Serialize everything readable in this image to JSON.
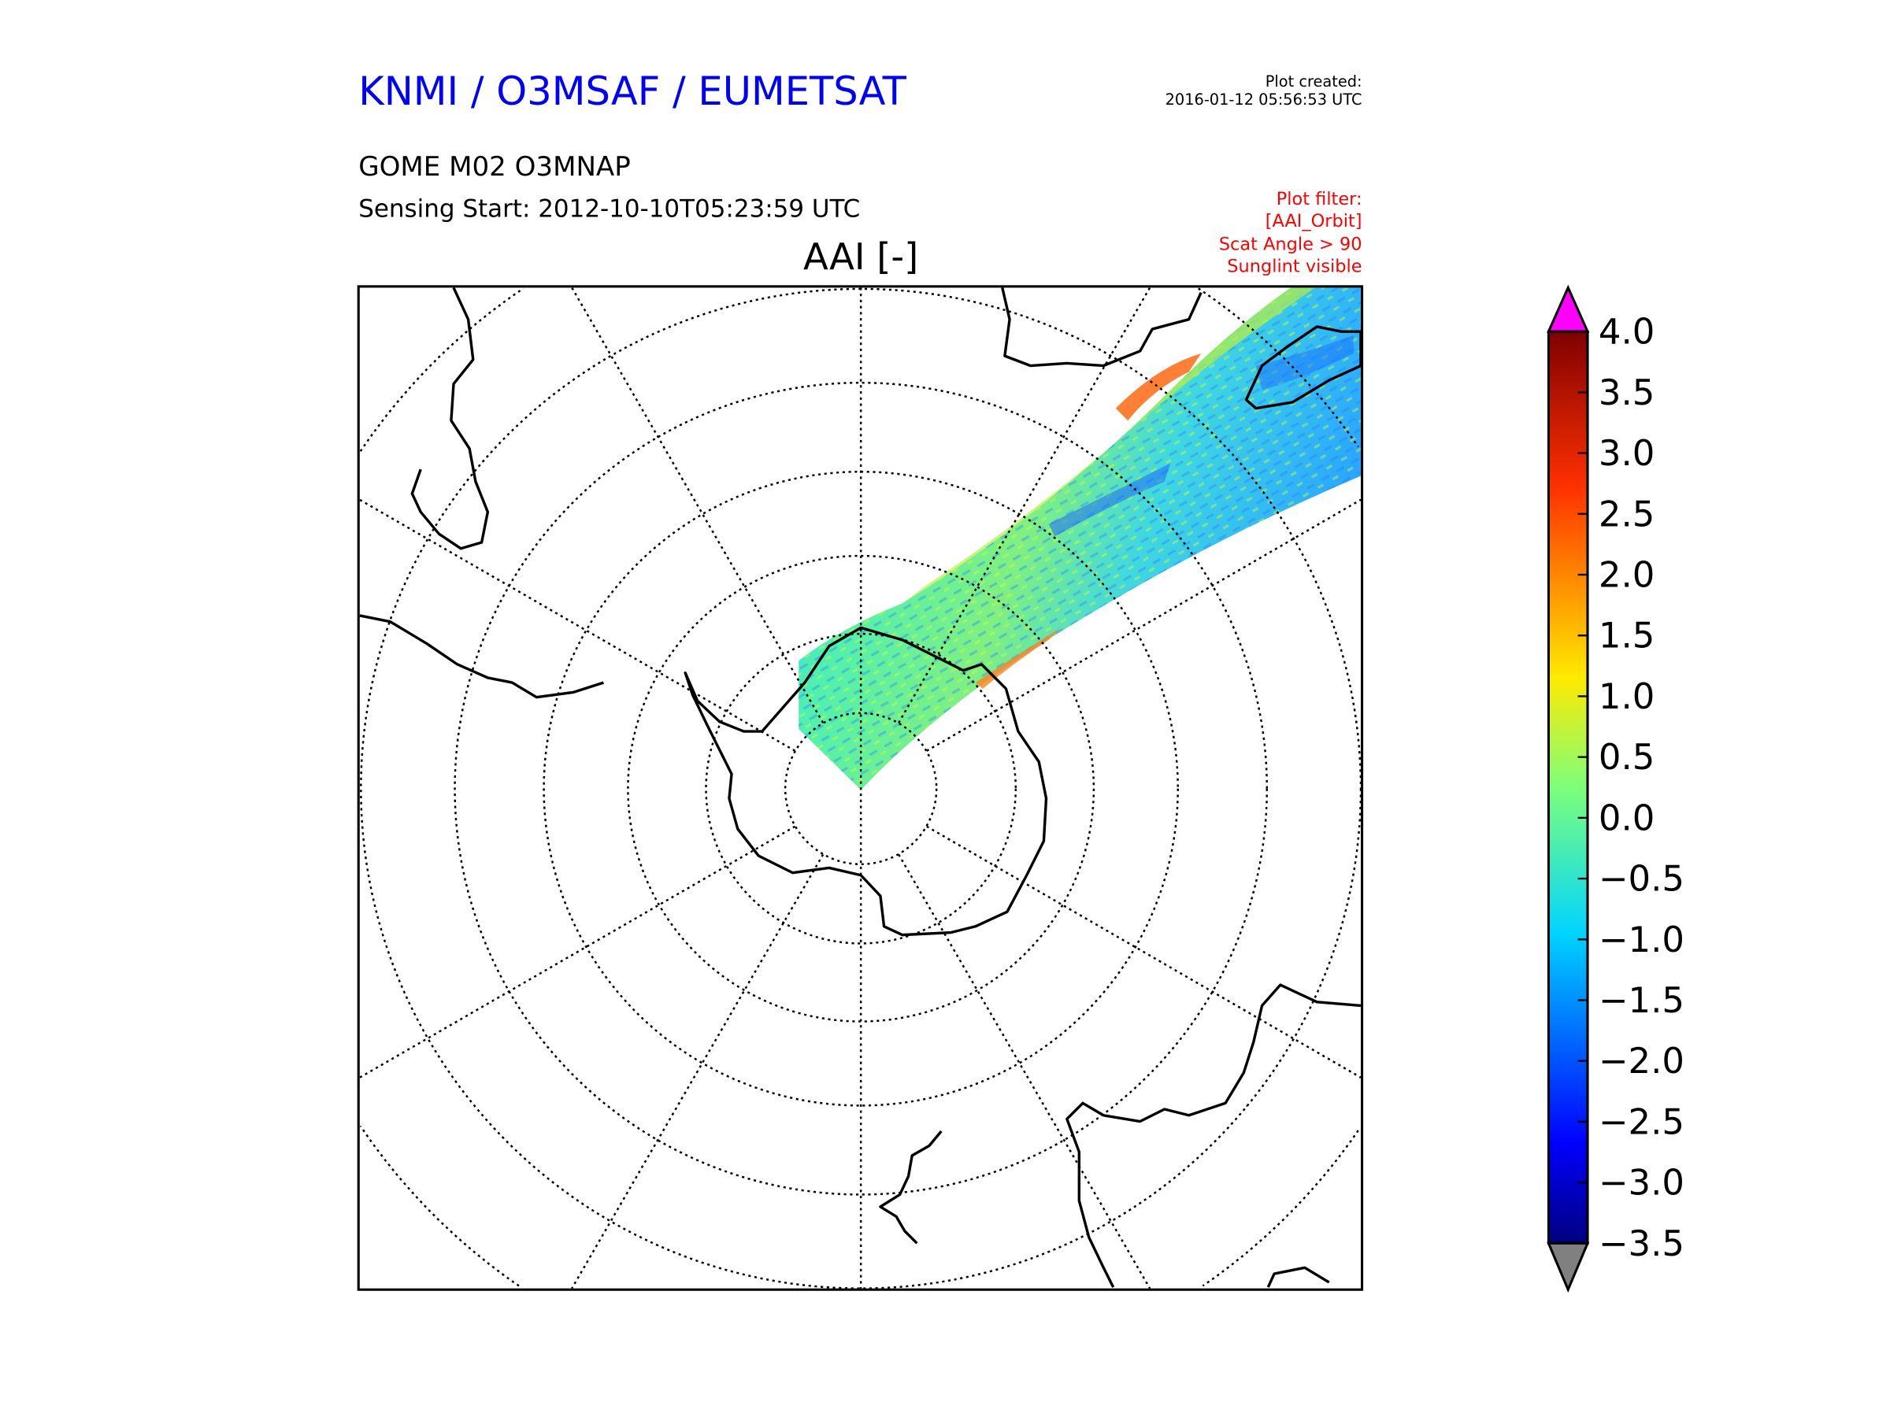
{
  "header": {
    "organisation": "KNMI / O3MSAF / EUMETSAT",
    "product": "GOME M02 O3MNAP",
    "sensing_start": "Sensing Start: 2012-10-10T05:23:59 UTC",
    "plot_created_label": "Plot created:",
    "plot_created_value": "2016-01-12 05:56:53 UTC"
  },
  "filter": {
    "lines": [
      "Plot filter:",
      "[AAI_Orbit]",
      "Scat Angle > 90",
      "Sunglint visible"
    ],
    "color": "#ff0000"
  },
  "map": {
    "title": "AAI [-]",
    "projection": "south polar stereographic"
  },
  "colorbar": {
    "ticks": [
      "4.0",
      "3.5",
      "3.0",
      "2.5",
      "2.0",
      "1.5",
      "1.0",
      "0.5",
      "0.0",
      "−0.5",
      "−1.0",
      "−1.5",
      "−2.0",
      "−2.5",
      "−3.0",
      "−3.5"
    ],
    "min": -3.5,
    "max": 4.0,
    "over_color": "#ff00ff",
    "under_color": "#808080",
    "colormap": "jet"
  },
  "colors": {
    "title_blue": "#0000ff"
  }
}
